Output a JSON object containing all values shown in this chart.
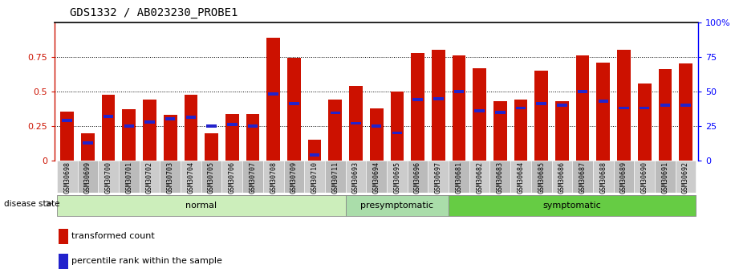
{
  "title": "GDS1332 / AB023230_PROBE1",
  "samples": [
    "GSM30698",
    "GSM30699",
    "GSM30700",
    "GSM30701",
    "GSM30702",
    "GSM30703",
    "GSM30704",
    "GSM30705",
    "GSM30706",
    "GSM30707",
    "GSM30708",
    "GSM30709",
    "GSM30710",
    "GSM30711",
    "GSM30693",
    "GSM30694",
    "GSM30695",
    "GSM30696",
    "GSM30697",
    "GSM30681",
    "GSM30682",
    "GSM30683",
    "GSM30684",
    "GSM30685",
    "GSM30686",
    "GSM30687",
    "GSM30688",
    "GSM30689",
    "GSM30690",
    "GSM30691",
    "GSM30692"
  ],
  "red_values": [
    0.355,
    0.2,
    0.475,
    0.37,
    0.44,
    0.33,
    0.475,
    0.2,
    0.335,
    0.335,
    0.885,
    0.74,
    0.15,
    0.44,
    0.54,
    0.375,
    0.5,
    0.78,
    0.8,
    0.76,
    0.67,
    0.43,
    0.44,
    0.65,
    0.43,
    0.76,
    0.71,
    0.8,
    0.56,
    0.66,
    0.7
  ],
  "blue_values": [
    0.29,
    0.13,
    0.32,
    0.25,
    0.28,
    0.3,
    0.315,
    0.25,
    0.26,
    0.25,
    0.48,
    0.41,
    0.04,
    0.345,
    0.27,
    0.25,
    0.2,
    0.44,
    0.445,
    0.5,
    0.36,
    0.35,
    0.38,
    0.41,
    0.4,
    0.5,
    0.43,
    0.38,
    0.38,
    0.4,
    0.4
  ],
  "groups": [
    {
      "label": "normal",
      "start": 0,
      "end": 13,
      "color": "#cceebb"
    },
    {
      "label": "presymptomatic",
      "start": 14,
      "end": 18,
      "color": "#aaddaa"
    },
    {
      "label": "symptomatic",
      "start": 19,
      "end": 30,
      "color": "#66cc44"
    }
  ],
  "bar_color": "#cc1100",
  "blue_color": "#2222cc",
  "yticks_left": [
    0,
    0.25,
    0.5,
    0.75
  ],
  "yticks_right": [
    0,
    25,
    50,
    75,
    100
  ],
  "dotted_lines": [
    0.25,
    0.5,
    0.75
  ],
  "legend_items": [
    {
      "label": "transformed count",
      "color": "#cc1100"
    },
    {
      "label": "percentile rank within the sample",
      "color": "#2222cc"
    }
  ],
  "label_bg_colors": [
    "#cccccc",
    "#bbbbbb"
  ]
}
